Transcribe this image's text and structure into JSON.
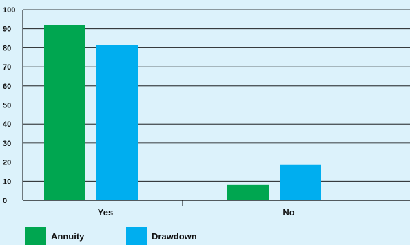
{
  "chart_data": {
    "type": "bar",
    "categories": [
      "Yes",
      "No"
    ],
    "series": [
      {
        "name": "Annuity",
        "values": [
          92,
          8
        ],
        "color": "#00a650"
      },
      {
        "name": "Drawdown",
        "values": [
          81.5,
          18.5
        ],
        "color": "#00aeef"
      }
    ],
    "ylim": [
      0,
      100
    ],
    "yticks": [
      0,
      10,
      20,
      30,
      40,
      50,
      60,
      70,
      80,
      90,
      100
    ],
    "grid": true,
    "legend_position": "bottom-left"
  }
}
